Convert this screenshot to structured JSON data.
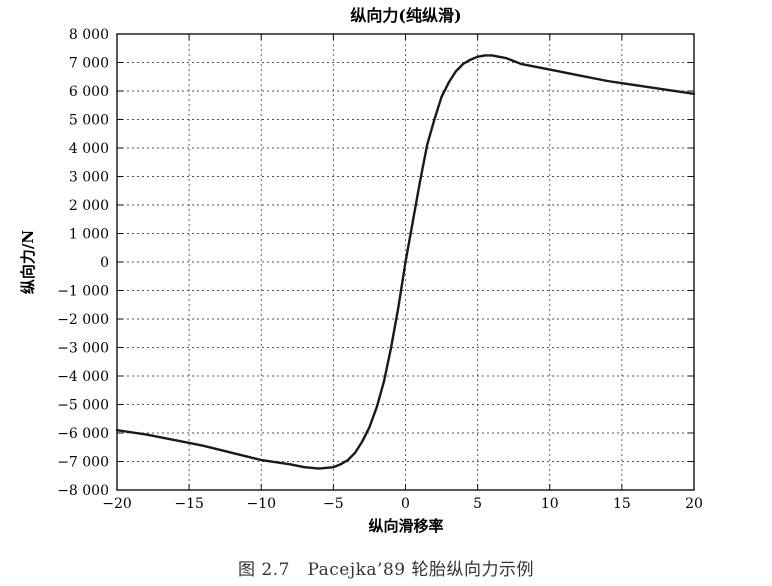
{
  "chart_data": {
    "type": "line",
    "title": "纵向力(纯纵滑)",
    "xlabel": "纵向滑移率",
    "ylabel": "纵向力/N",
    "xlim": [
      -20,
      20
    ],
    "ylim": [
      -8000,
      8000
    ],
    "x_ticks": [
      -20,
      -15,
      -10,
      -5,
      0,
      5,
      10,
      15,
      20
    ],
    "x_tick_labels": [
      "−20",
      "−15",
      "−10",
      "−5",
      "0",
      "5",
      "10",
      "15",
      "20"
    ],
    "y_ticks": [
      8000,
      7000,
      6000,
      5000,
      4000,
      3000,
      2000,
      1000,
      0,
      -1000,
      -2000,
      -3000,
      -4000,
      -5000,
      -6000,
      -7000,
      -8000
    ],
    "y_tick_labels": [
      "8 000",
      "7 000",
      "6 000",
      "5 000",
      "4 000",
      "3 000",
      "2 000",
      "1 000",
      "0",
      "−1 000",
      "−2 000",
      "−3 000",
      "−4 000",
      "−5 000",
      "−6 000",
      "−7 000",
      "−8 000"
    ],
    "grid": true,
    "grid_style": "dotted",
    "line_color": "#1a1a1a",
    "series": [
      {
        "x": [
          -20,
          -18,
          -16,
          -14,
          -12,
          -10,
          -8,
          -7,
          -6,
          -5,
          -4.5,
          -4,
          -3.5,
          -3,
          -2.5,
          -2,
          -1.5,
          -1,
          -0.5,
          0,
          0.5,
          1,
          1.5,
          2,
          2.5,
          3,
          3.5,
          4,
          4.5,
          5,
          5.5,
          6,
          7,
          8,
          10,
          12,
          14,
          16,
          18,
          20
        ],
        "y": [
          -5900,
          -6050,
          -6250,
          -6450,
          -6700,
          -6950,
          -7100,
          -7200,
          -7250,
          -7200,
          -7100,
          -6950,
          -6700,
          -6300,
          -5800,
          -5100,
          -4200,
          -3000,
          -1600,
          0,
          1400,
          2800,
          4100,
          5000,
          5800,
          6300,
          6700,
          6950,
          7100,
          7200,
          7250,
          7250,
          7150,
          6950,
          6750,
          6550,
          6350,
          6200,
          6050,
          5900
        ]
      }
    ]
  },
  "caption": "图 2.7　Pacejka’89 轮胎纵向力示例"
}
